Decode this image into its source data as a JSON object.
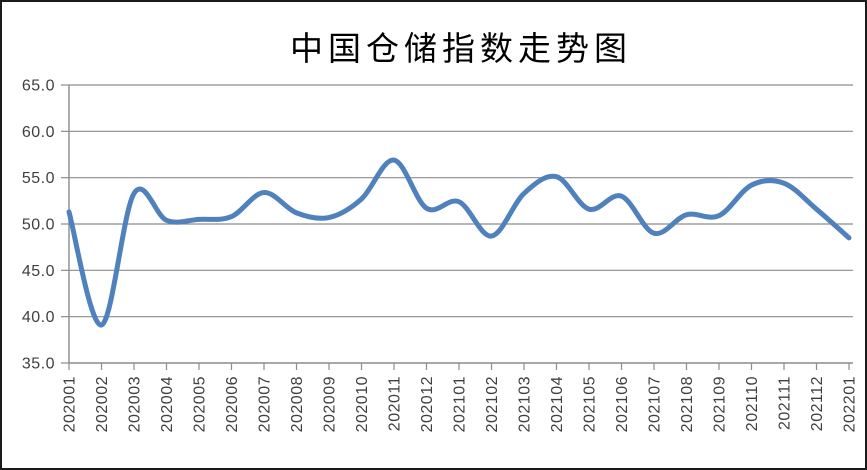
{
  "chart_data": {
    "type": "line",
    "title": "中国仓储指数走势图",
    "categories": [
      "202001",
      "202002",
      "202003",
      "202004",
      "202005",
      "202006",
      "202007",
      "202008",
      "202009",
      "202010",
      "202011",
      "202012",
      "202101",
      "202102",
      "202103",
      "202104",
      "202105",
      "202106",
      "202107",
      "202108",
      "202109",
      "202110",
      "202111",
      "202112",
      "202201"
    ],
    "values": [
      51.3,
      39.1,
      53.3,
      50.4,
      50.5,
      50.8,
      53.4,
      51.2,
      50.7,
      52.7,
      56.9,
      51.7,
      52.4,
      48.7,
      53.3,
      55.1,
      51.6,
      53.0,
      49.0,
      51.0,
      50.9,
      54.2,
      54.4,
      51.6,
      48.5
    ],
    "xlabel": "",
    "ylabel": "",
    "ylim": [
      35,
      65
    ],
    "y_tick_interval": 5,
    "y_tick_labels": [
      "35.0",
      "40.0",
      "45.0",
      "50.0",
      "55.0",
      "60.0",
      "65.0"
    ],
    "grid": true,
    "legend": false,
    "smoothed": true,
    "x_label_rotation": -90,
    "colors": {
      "line": "#4F81BD",
      "gridline": "#8C8C8C",
      "axis": "#8C8C8C",
      "tick_label": "#3F3F3F",
      "title": "#000000",
      "background": "#FFFFFF",
      "frame_border": "#1A1A1A"
    }
  }
}
